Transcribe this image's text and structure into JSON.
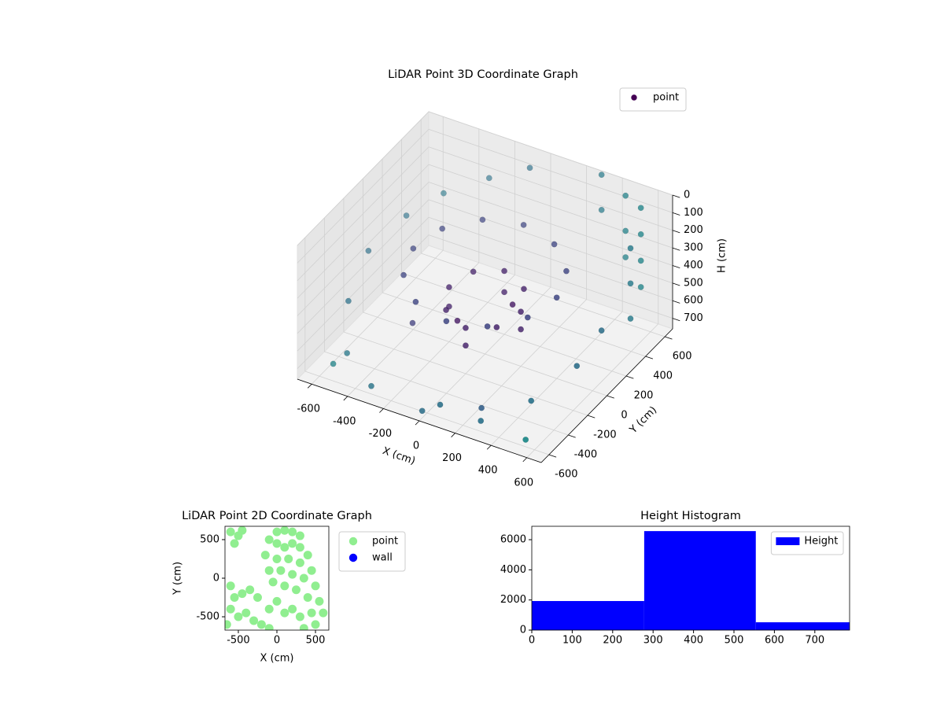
{
  "chart_data": [
    {
      "type": "scatter3d",
      "title": "LiDAR Point 3D Coordinate Graph",
      "xlabel": "X (cm)",
      "ylabel": "Y (cm)",
      "zlabel": "H (cm)",
      "xlim": [
        -680,
        680
      ],
      "ylim": [
        -680,
        680
      ],
      "zlim": [
        0,
        760
      ],
      "z_inverted": true,
      "xticks": [
        -600,
        -400,
        -200,
        0,
        200,
        400,
        600
      ],
      "yticks": [
        -600,
        -400,
        -200,
        0,
        200,
        400,
        600
      ],
      "zticks": [
        0,
        100,
        200,
        300,
        400,
        500,
        600,
        700
      ],
      "grid": true,
      "legend": "upper right",
      "colormap": "viridis",
      "series": [
        {
          "name": "point",
          "color": "#440154",
          "x": [
            400,
            346,
            200,
            0,
            -200,
            -346,
            -400,
            -346,
            -200,
            0,
            200,
            346,
            200,
            141,
            0,
            -141,
            -200,
            -141,
            0,
            141,
            200,
            0,
            -200,
            0,
            100,
            -100,
            600,
            600,
            600,
            600,
            450,
            450,
            450,
            650,
            650,
            650,
            300,
            300,
            -100,
            -300,
            -500,
            -600,
            -650,
            -600,
            -500,
            -300,
            0,
            300,
            500,
            620,
            650,
            -550,
            250,
            -350,
            100,
            550
          ],
          "y": [
            0,
            200,
            346,
            400,
            346,
            200,
            0,
            -200,
            -346,
            -400,
            -346,
            -200,
            0,
            141,
            200,
            141,
            0,
            -141,
            -200,
            -141,
            0,
            200,
            0,
            -200,
            100,
            -100,
            500,
            500,
            500,
            500,
            620,
            620,
            620,
            300,
            300,
            300,
            650,
            650,
            650,
            600,
            500,
            300,
            0,
            -300,
            -500,
            -620,
            -650,
            -600,
            -450,
            -200,
            0,
            -550,
            -500,
            -100,
            -650,
            -600
          ],
          "z": [
            300,
            280,
            260,
            250,
            260,
            280,
            300,
            320,
            340,
            350,
            340,
            320,
            450,
            420,
            400,
            420,
            450,
            480,
            500,
            480,
            550,
            520,
            560,
            600,
            500,
            550,
            0,
            150,
            300,
            450,
            50,
            250,
            400,
            100,
            300,
            500,
            0,
            200,
            100,
            200,
            300,
            350,
            400,
            500,
            650,
            700,
            720,
            700,
            600,
            500,
            400,
            700,
            700,
            650,
            650,
            720
          ]
        }
      ]
    },
    {
      "type": "scatter",
      "title": "LiDAR Point 2D Coordinate Graph",
      "xlabel": "X (cm)",
      "ylabel": "Y (cm)",
      "xlim": [
        -673,
        673
      ],
      "ylim": [
        -673,
        673
      ],
      "xticks": [
        -500,
        0,
        500
      ],
      "yticks": [
        -500,
        0,
        500
      ],
      "legend": "outside right",
      "series": [
        {
          "name": "point",
          "color": "#90ee90",
          "x": [
            -600,
            -500,
            -550,
            -450,
            0,
            100,
            200,
            300,
            -100,
            0,
            100,
            200,
            300,
            400,
            -150,
            0,
            150,
            300,
            450,
            -100,
            50,
            200,
            350,
            500,
            -50,
            100,
            250,
            400,
            550,
            -600,
            -550,
            -450,
            -350,
            -250,
            -600,
            -500,
            -400,
            -300,
            -200,
            -100,
            0,
            100,
            200,
            300,
            450,
            600,
            -650,
            350,
            500,
            -100
          ],
          "y": [
            600,
            550,
            450,
            620,
            600,
            620,
            600,
            550,
            500,
            450,
            400,
            450,
            400,
            300,
            300,
            250,
            250,
            200,
            100,
            100,
            100,
            50,
            0,
            -100,
            -50,
            -100,
            -150,
            -250,
            -300,
            -100,
            -250,
            -200,
            -150,
            -250,
            -400,
            -500,
            -450,
            -550,
            -600,
            -400,
            -300,
            -450,
            -400,
            -500,
            -450,
            -450,
            -600,
            -650,
            -600,
            -650
          ]
        },
        {
          "name": "wall",
          "color": "#0000ff",
          "x": [],
          "y": []
        }
      ]
    },
    {
      "type": "histogram",
      "title": "Height Histogram",
      "xlim": [
        0,
        786
      ],
      "ylim": [
        0,
        6890
      ],
      "xticks": [
        0,
        100,
        200,
        300,
        400,
        500,
        600,
        700
      ],
      "yticks": [
        0,
        2000,
        4000,
        6000
      ],
      "legend": "upper right",
      "bins": [
        0,
        278,
        554,
        786
      ],
      "series": [
        {
          "name": "Height",
          "color": "#0000ff",
          "values": [
            1930,
            6570,
            520
          ]
        }
      ]
    }
  ]
}
